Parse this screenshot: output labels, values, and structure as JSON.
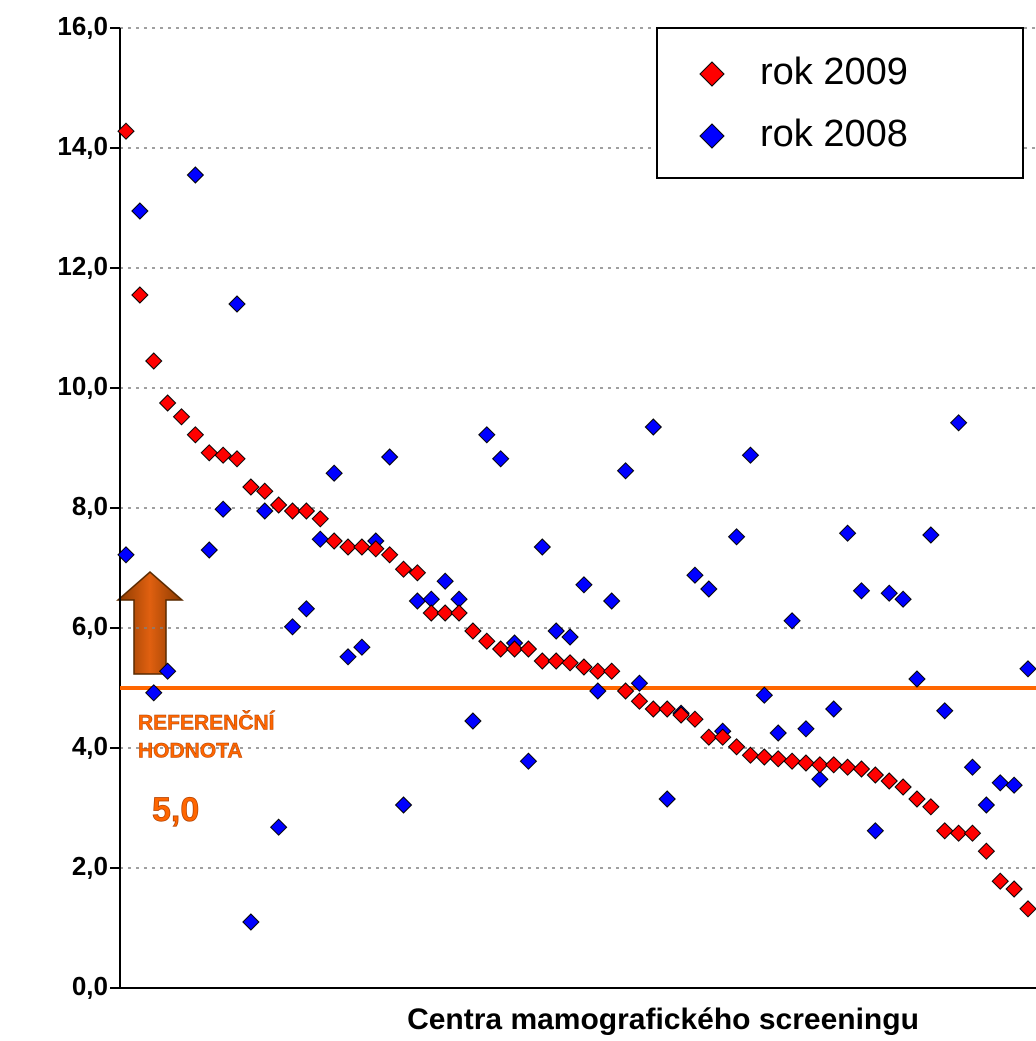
{
  "chart_data": {
    "type": "scatter",
    "x_label": "Centra mamografického screeningu",
    "categories": [
      null,
      null,
      null,
      null,
      null,
      null,
      null,
      null,
      null,
      null,
      null,
      null,
      null,
      null,
      null,
      null,
      null,
      null,
      null,
      null,
      null,
      null,
      null,
      null,
      null,
      null,
      null,
      null,
      null,
      null,
      null,
      null,
      null,
      null,
      null,
      null,
      null,
      null,
      null,
      null,
      null,
      null,
      null,
      null,
      null,
      null,
      null,
      null,
      null,
      null,
      null,
      null,
      null,
      null,
      null,
      null,
      null,
      null,
      null,
      null,
      null,
      null,
      null,
      null,
      null,
      null
    ],
    "series": [
      {
        "name": "rok 2009",
        "color": "#ff0000",
        "values": [
          14.28,
          11.55,
          10.45,
          9.75,
          9.52,
          9.22,
          8.92,
          8.88,
          8.82,
          8.35,
          8.28,
          8.05,
          7.95,
          7.95,
          7.82,
          7.45,
          7.35,
          7.35,
          7.32,
          7.22,
          6.98,
          6.92,
          6.25,
          6.25,
          6.25,
          5.95,
          5.78,
          5.65,
          5.65,
          5.65,
          5.45,
          5.45,
          5.42,
          5.35,
          5.28,
          5.28,
          4.95,
          4.78,
          4.65,
          4.65,
          4.55,
          4.48,
          4.18,
          4.18,
          4.02,
          3.88,
          3.85,
          3.82,
          3.78,
          3.75,
          3.72,
          3.72,
          3.68,
          3.65,
          3.55,
          3.45,
          3.35,
          3.15,
          3.02,
          2.62,
          2.58,
          2.58,
          2.28,
          1.78,
          1.65,
          1.32
        ]
      },
      {
        "name": "rok 2008",
        "color": "#0000ff",
        "values": [
          7.22,
          12.95,
          4.92,
          5.28,
          null,
          13.55,
          7.3,
          7.98,
          11.4,
          1.1,
          7.95,
          2.68,
          6.02,
          6.32,
          7.48,
          8.58,
          5.52,
          5.68,
          7.45,
          8.85,
          3.05,
          6.45,
          6.48,
          6.78,
          6.48,
          4.45,
          9.22,
          8.82,
          5.75,
          3.78,
          7.35,
          5.95,
          5.85,
          6.72,
          4.95,
          6.45,
          8.62,
          5.08,
          9.35,
          3.15,
          4.58,
          6.88,
          6.65,
          4.28,
          7.52,
          8.88,
          4.88,
          4.25,
          6.12,
          4.32,
          3.48,
          4.65,
          7.58,
          6.62,
          2.62,
          6.58,
          6.48,
          5.15,
          7.55,
          4.62,
          9.42,
          3.68,
          3.05,
          3.42,
          3.38,
          5.32
        ]
      }
    ],
    "ylim": [
      0,
      16
    ],
    "yticks": [
      {
        "value": 0,
        "label": "0,0"
      },
      {
        "value": 2,
        "label": "2,0"
      },
      {
        "value": 4,
        "label": "4,0"
      },
      {
        "value": 6,
        "label": "6,0"
      },
      {
        "value": 8,
        "label": "8,0"
      },
      {
        "value": 10,
        "label": "10,0"
      },
      {
        "value": 12,
        "label": "12,0"
      },
      {
        "value": 14,
        "label": "14,0"
      },
      {
        "value": 16,
        "label": "16,0"
      }
    ],
    "grid": true,
    "legend": "top-right",
    "reference_line": {
      "value": 5,
      "value_label": "5,0",
      "label": [
        "REFERENČNÍ",
        "HODNOTA"
      ],
      "color": "#ff6600"
    }
  }
}
